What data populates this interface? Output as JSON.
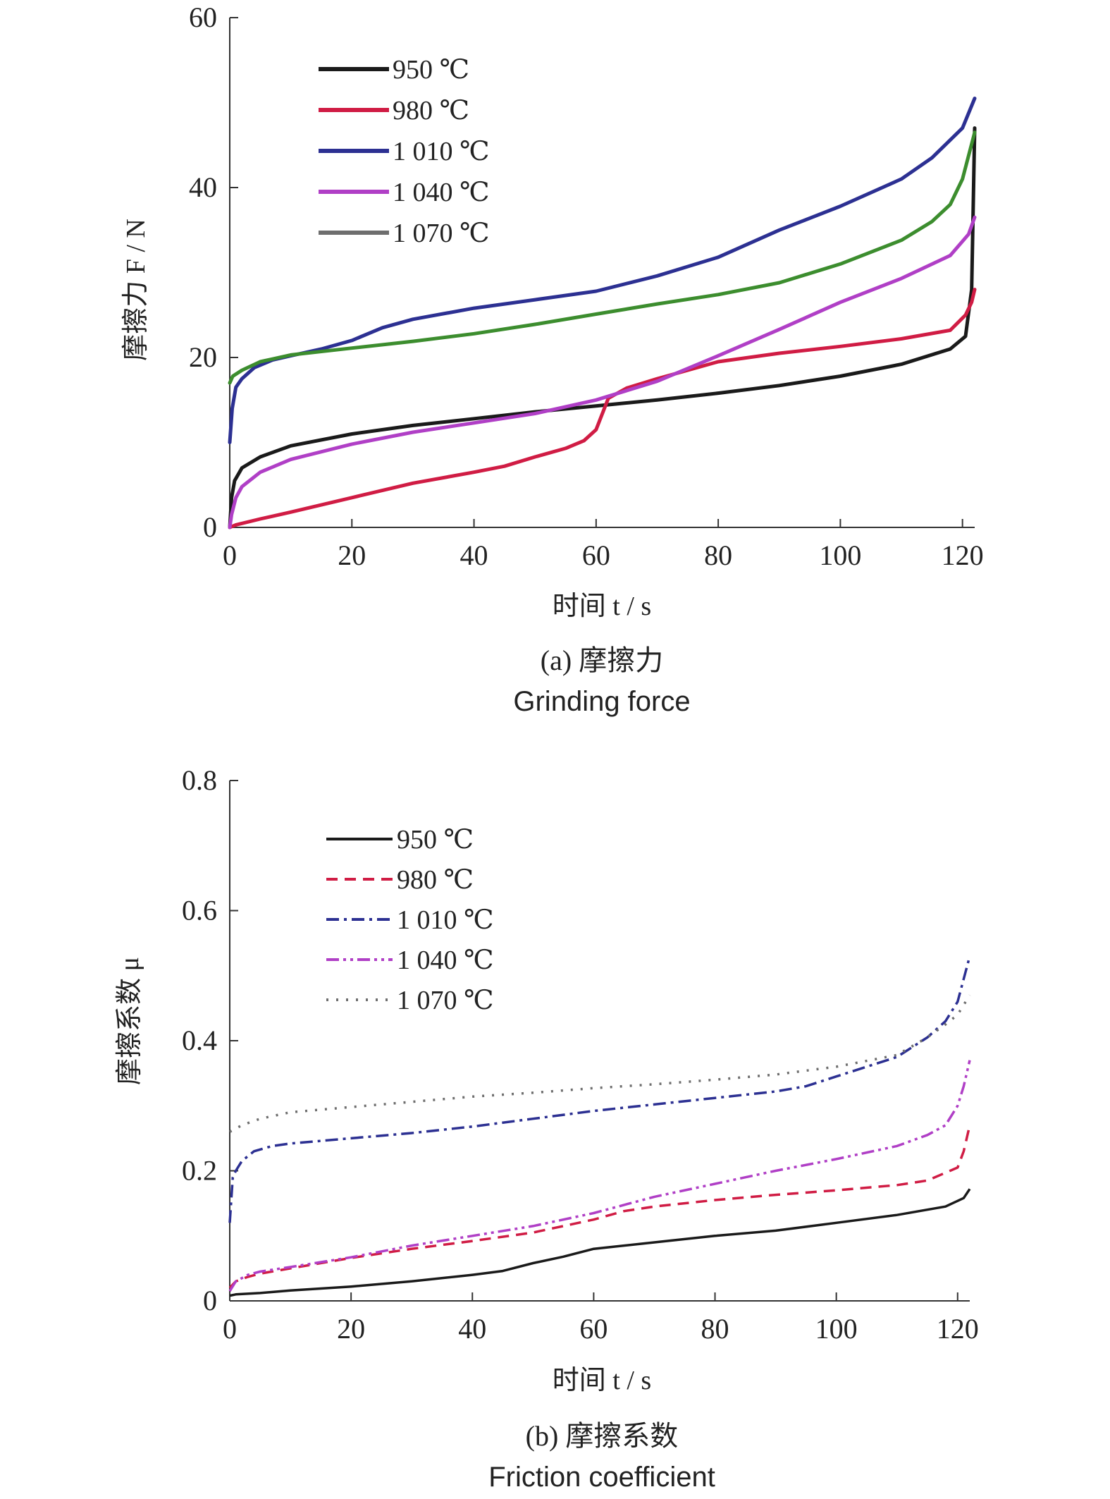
{
  "chart_data": [
    {
      "type": "line",
      "id": "force",
      "title": "(a) 摩擦力",
      "subtitle": "Grinding force",
      "xlabel": "时间 t / s",
      "ylabel": "摩擦力 F / N",
      "xlim": [
        0,
        122
      ],
      "ylim": [
        0,
        60
      ],
      "xticks": [
        0,
        20,
        40,
        60,
        80,
        100,
        120
      ],
      "yticks": [
        0,
        20,
        40,
        60
      ],
      "ytick_labels": [
        "0",
        "20",
        "40",
        "60"
      ],
      "grid": false,
      "legend_position": "top-left",
      "legend_style": "solid",
      "series": [
        {
          "name": "950 ℃",
          "color": "#1a1a1a",
          "dash": "solid",
          "x": [
            0,
            0.3,
            0.8,
            2,
            5,
            10,
            20,
            30,
            40,
            50,
            60,
            70,
            80,
            90,
            100,
            110,
            118,
            120.5,
            121.5,
            122
          ],
          "y": [
            0,
            3.5,
            5.5,
            7,
            8.3,
            9.6,
            11,
            12,
            12.8,
            13.6,
            14.3,
            15,
            15.8,
            16.7,
            17.8,
            19.2,
            21,
            22.5,
            28,
            47
          ]
        },
        {
          "name": "980 ℃",
          "color": "#d01c44",
          "dash": "solid",
          "x": [
            0,
            1,
            5,
            10,
            20,
            30,
            40,
            45,
            50,
            55,
            58,
            60,
            62,
            65,
            70,
            75,
            80,
            90,
            100,
            110,
            118,
            120.5,
            121.5,
            122
          ],
          "y": [
            0,
            0.3,
            1,
            1.8,
            3.5,
            5.2,
            6.5,
            7.2,
            8.3,
            9.3,
            10.2,
            11.5,
            15.2,
            16.4,
            17.5,
            18.5,
            19.5,
            20.5,
            21.3,
            22.2,
            23.2,
            25,
            26.5,
            28
          ]
        },
        {
          "name": "1 010 ℃",
          "color": "#2c3092",
          "dash": "solid",
          "x": [
            0,
            0.4,
            1,
            2,
            4,
            7,
            10,
            15,
            20,
            25,
            30,
            40,
            50,
            60,
            70,
            80,
            90,
            100,
            110,
            115,
            120,
            122
          ],
          "y": [
            10,
            14,
            16.5,
            17.5,
            18.8,
            19.7,
            20.2,
            21,
            22,
            23.5,
            24.5,
            25.8,
            26.8,
            27.8,
            29.6,
            31.8,
            35,
            37.8,
            41,
            43.5,
            47,
            50.5
          ]
        },
        {
          "name": "1 040 ℃",
          "color": "#b03fc6",
          "dash": "solid",
          "x": [
            0,
            0.3,
            1,
            2,
            5,
            10,
            20,
            30,
            40,
            50,
            60,
            70,
            80,
            90,
            100,
            110,
            118,
            121,
            122
          ],
          "y": [
            0,
            1.5,
            3.5,
            4.8,
            6.5,
            8,
            9.8,
            11.2,
            12.3,
            13.4,
            15,
            17.2,
            20.2,
            23.3,
            26.5,
            29.3,
            32,
            34.5,
            36.5
          ]
        },
        {
          "name": "1 070 ℃",
          "color": "#6e6e6e",
          "line_color": "#3c8d2e",
          "dash": "solid",
          "x": [
            0,
            0.5,
            2,
            5,
            10,
            20,
            30,
            40,
            50,
            60,
            70,
            80,
            90,
            100,
            110,
            115,
            118,
            120,
            122
          ],
          "y": [
            17,
            17.8,
            18.5,
            19.5,
            20.3,
            21.1,
            21.9,
            22.8,
            23.9,
            25.1,
            26.3,
            27.4,
            28.8,
            31,
            33.8,
            36,
            38,
            41,
            46.5
          ]
        }
      ]
    },
    {
      "type": "line",
      "id": "coefficient",
      "title": "(b) 摩擦系数",
      "subtitle": "Friction coefficient",
      "xlabel": "时间 t / s",
      "ylabel": "摩擦系数 μ",
      "xlim": [
        0,
        122
      ],
      "ylim": [
        0,
        0.8
      ],
      "xticks": [
        0,
        20,
        40,
        60,
        80,
        100,
        120
      ],
      "yticks": [
        0,
        0.2,
        0.4,
        0.6,
        0.8
      ],
      "ytick_labels": [
        "0",
        "0.2",
        "0.4",
        "0.6",
        "0.8"
      ],
      "grid": false,
      "legend_position": "top-left",
      "legend_style": "dashed",
      "series": [
        {
          "name": "950 ℃",
          "color": "#1a1a1a",
          "dash": "solid",
          "x": [
            0,
            1,
            5,
            10,
            20,
            30,
            40,
            45,
            50,
            55,
            60,
            70,
            80,
            90,
            100,
            110,
            118,
            121,
            122
          ],
          "y": [
            0.008,
            0.01,
            0.012,
            0.016,
            0.022,
            0.03,
            0.04,
            0.046,
            0.058,
            0.068,
            0.08,
            0.09,
            0.1,
            0.108,
            0.12,
            0.132,
            0.145,
            0.158,
            0.172
          ]
        },
        {
          "name": "980 ℃",
          "color": "#d01c44",
          "dash": "dashed",
          "x": [
            0,
            1,
            3,
            5,
            10,
            20,
            30,
            40,
            50,
            60,
            65,
            70,
            80,
            90,
            100,
            110,
            115,
            120,
            121,
            122
          ],
          "y": [
            0.02,
            0.03,
            0.037,
            0.042,
            0.05,
            0.066,
            0.08,
            0.092,
            0.105,
            0.125,
            0.138,
            0.145,
            0.155,
            0.163,
            0.17,
            0.178,
            0.185,
            0.205,
            0.23,
            0.27
          ]
        },
        {
          "name": "1 010 ℃",
          "color": "#2c3092",
          "dash": "dashdot",
          "x": [
            0,
            0.5,
            1,
            2,
            4,
            7,
            10,
            20,
            30,
            40,
            50,
            60,
            70,
            80,
            90,
            95,
            100,
            105,
            110,
            115,
            118,
            120,
            122
          ],
          "y": [
            0.12,
            0.19,
            0.2,
            0.215,
            0.23,
            0.238,
            0.242,
            0.25,
            0.258,
            0.268,
            0.28,
            0.292,
            0.302,
            0.312,
            0.322,
            0.33,
            0.345,
            0.36,
            0.375,
            0.405,
            0.43,
            0.46,
            0.53
          ]
        },
        {
          "name": "1 040 ℃",
          "color": "#b03fc6",
          "dash": "dashdotdot",
          "x": [
            0,
            1,
            3,
            5,
            10,
            20,
            30,
            40,
            50,
            60,
            70,
            80,
            90,
            100,
            110,
            115,
            118,
            120,
            121,
            122
          ],
          "y": [
            0.015,
            0.03,
            0.04,
            0.045,
            0.052,
            0.067,
            0.085,
            0.1,
            0.115,
            0.135,
            0.16,
            0.18,
            0.2,
            0.218,
            0.238,
            0.255,
            0.27,
            0.3,
            0.33,
            0.37
          ]
        },
        {
          "name": "1 070 ℃",
          "color": "#6e6e6e",
          "dash": "dotted",
          "x": [
            0,
            2,
            5,
            10,
            20,
            30,
            40,
            50,
            60,
            70,
            80,
            90,
            100,
            110,
            115,
            118,
            120,
            122
          ],
          "y": [
            0.26,
            0.27,
            0.28,
            0.29,
            0.298,
            0.306,
            0.314,
            0.32,
            0.327,
            0.333,
            0.34,
            0.348,
            0.36,
            0.378,
            0.405,
            0.425,
            0.44,
            0.47
          ]
        }
      ]
    }
  ]
}
